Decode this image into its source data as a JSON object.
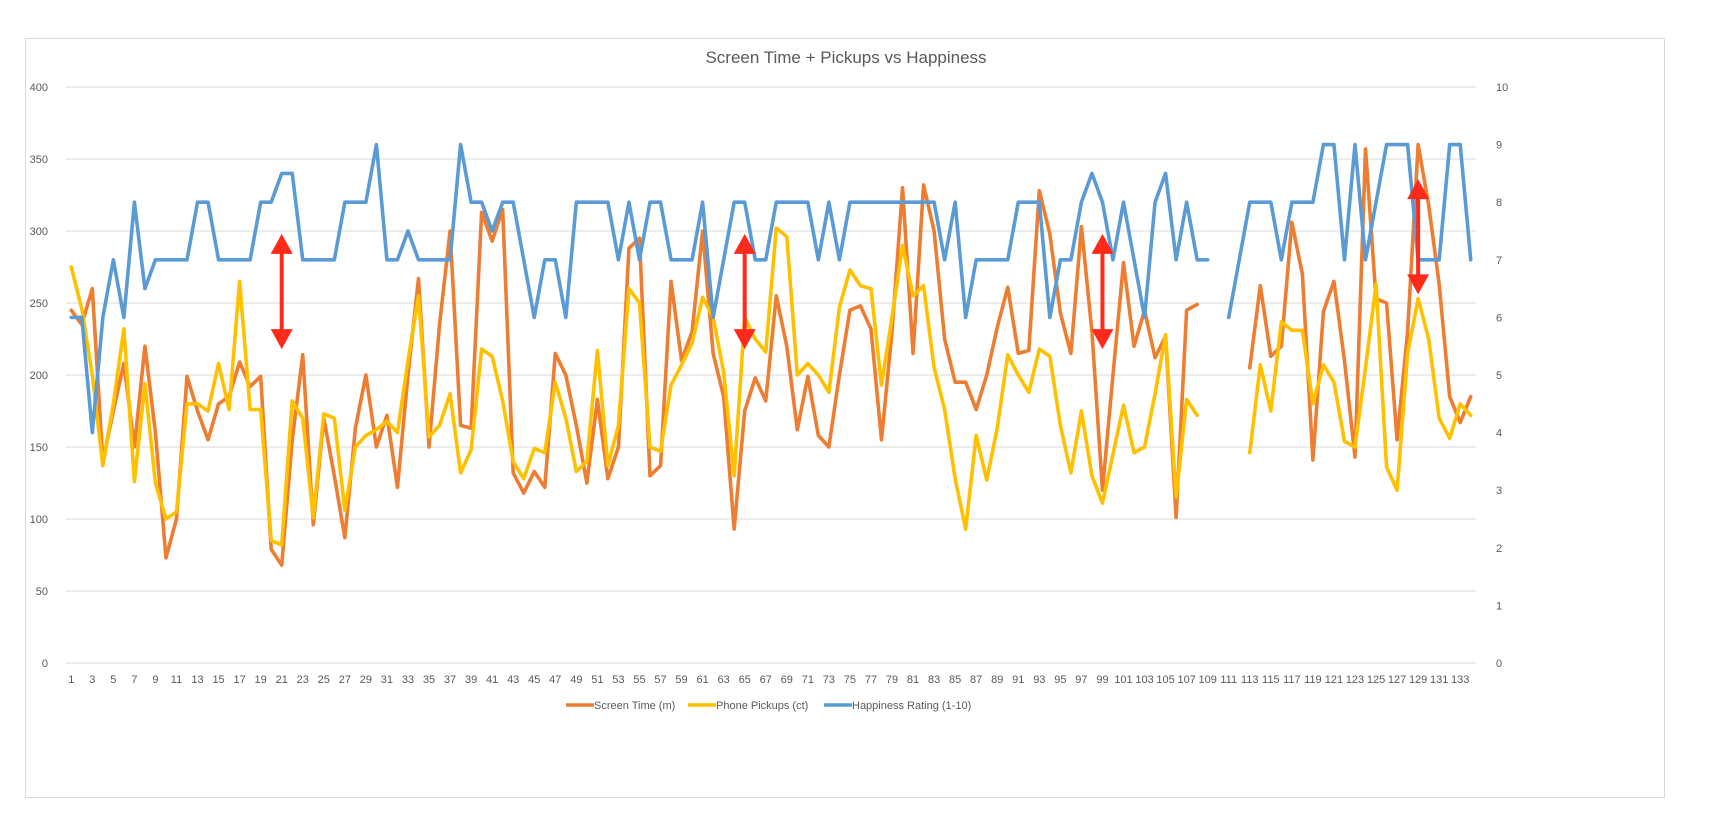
{
  "chart_data": {
    "type": "line",
    "title": "Screen Time + Pickups vs Happiness",
    "x_labels_every": 2,
    "x_start": 1,
    "x_end": 134,
    "y_left": {
      "min": 0,
      "max": 400,
      "step": 50
    },
    "y_right": {
      "min": 0,
      "max": 10,
      "step": 1
    },
    "legend_position": "bottom",
    "gridlines": true,
    "series": [
      {
        "name": "Screen Time (m)",
        "axis": "left",
        "color": "#ED7D31",
        "values": [
          245,
          235,
          260,
          140,
          175,
          208,
          150,
          220,
          160,
          73,
          100,
          199,
          175,
          155,
          180,
          185,
          209,
          192,
          199,
          79,
          68,
          155,
          214,
          96,
          170,
          130,
          87,
          163,
          200,
          150,
          172,
          122,
          200,
          267,
          150,
          235,
          300,
          165,
          163,
          313,
          293,
          315,
          132,
          118,
          133,
          122,
          215,
          200,
          165,
          125,
          183,
          128,
          150,
          288,
          295,
          130,
          137,
          265,
          210,
          230,
          300,
          215,
          185,
          93,
          175,
          198,
          182,
          255,
          220,
          162,
          199,
          158,
          150,
          200,
          245,
          248,
          232,
          155,
          230,
          330,
          215,
          332,
          300,
          225,
          195,
          195,
          176,
          200,
          233,
          261,
          215,
          217,
          328,
          298,
          243,
          215,
          303,
          230,
          120,
          200,
          278,
          220,
          245,
          212,
          227,
          101,
          245,
          249,
          null,
          null,
          null,
          null,
          205,
          262,
          213,
          220,
          306,
          270,
          141,
          244,
          265,
          210,
          143,
          357,
          253,
          250,
          155,
          230,
          360,
          318,
          263,
          185,
          167,
          185
        ]
      },
      {
        "name": "Phone Pickups (ct)",
        "axis": "left",
        "color": "#FFC000",
        "values": [
          275,
          246,
          200,
          137,
          180,
          232,
          126,
          194,
          125,
          100,
          105,
          180,
          180,
          175,
          208,
          176,
          265,
          176,
          176,
          85,
          82,
          182,
          170,
          101,
          173,
          170,
          106,
          150,
          158,
          162,
          168,
          160,
          210,
          255,
          157,
          165,
          187,
          132,
          148,
          218,
          213,
          182,
          140,
          128,
          149,
          146,
          195,
          170,
          133,
          140,
          217,
          137,
          165,
          260,
          250,
          150,
          147,
          193,
          207,
          222,
          254,
          240,
          202,
          130,
          240,
          225,
          216,
          302,
          296,
          200,
          208,
          200,
          188,
          247,
          273,
          262,
          260,
          193,
          240,
          290,
          255,
          262,
          205,
          176,
          128,
          93,
          158,
          127,
          163,
          214,
          200,
          188,
          218,
          213,
          165,
          132,
          175,
          130,
          111,
          145,
          179,
          146,
          150,
          187,
          228,
          115,
          183,
          172,
          null,
          null,
          null,
          null,
          146,
          207,
          175,
          237,
          231,
          231,
          180,
          207,
          195,
          154,
          150,
          205,
          263,
          136,
          120,
          215,
          253,
          225,
          170,
          156,
          180,
          172
        ]
      },
      {
        "name": "Happiness Rating (1-10)",
        "axis": "right",
        "color": "#5B9BD5",
        "values": [
          6,
          6,
          4,
          6,
          7,
          6,
          8,
          6.5,
          7,
          7,
          7,
          7,
          8,
          8,
          7,
          7,
          7,
          7,
          8,
          8,
          8.5,
          8.5,
          7,
          7,
          7,
          7,
          8,
          8,
          8,
          9,
          7,
          7,
          7.5,
          7,
          7,
          7,
          7,
          9,
          8,
          8,
          7.5,
          8,
          8,
          7,
          6,
          7,
          7,
          6,
          8,
          8,
          8,
          8,
          7,
          8,
          7,
          8,
          8,
          7,
          7,
          7,
          8,
          6,
          7,
          8,
          8,
          7,
          7,
          8,
          8,
          8,
          8,
          7,
          8,
          7,
          8,
          8,
          8,
          8,
          8,
          8,
          8,
          8,
          8,
          7,
          8,
          6,
          7,
          7,
          7,
          7,
          8,
          8,
          8,
          6,
          7,
          7,
          8,
          8.5,
          8,
          7,
          8,
          7,
          6,
          8,
          8.5,
          7,
          8,
          7,
          7,
          null,
          6,
          7,
          8,
          8,
          8,
          7,
          8,
          8,
          8,
          9,
          9,
          7,
          9,
          7,
          8,
          9,
          9,
          9,
          7,
          7,
          7,
          9,
          9,
          7
        ]
      }
    ],
    "annotations": [
      {
        "type": "double-arrow",
        "x": 21,
        "y_top": 298,
        "y_bottom": 218,
        "color": "#FF2A1A"
      },
      {
        "type": "double-arrow",
        "x": 65,
        "y_top": 298,
        "y_bottom": 218,
        "color": "#FF2A1A"
      },
      {
        "type": "double-arrow",
        "x": 99,
        "y_top": 298,
        "y_bottom": 218,
        "color": "#FF2A1A"
      },
      {
        "type": "double-arrow",
        "x": 129,
        "y_top": 336,
        "y_bottom": 256,
        "color": "#FF2A1A"
      }
    ]
  }
}
